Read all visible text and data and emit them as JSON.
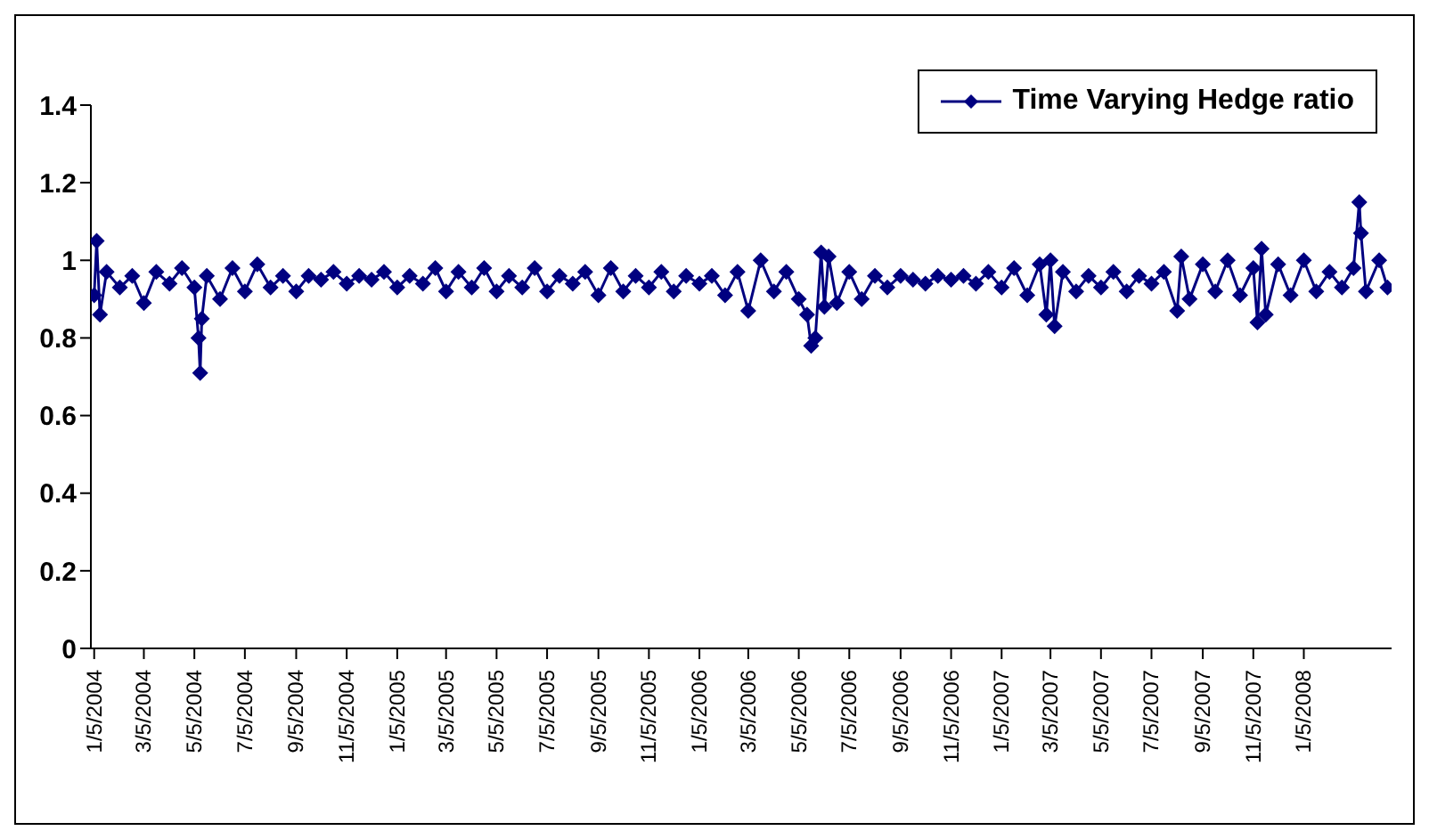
{
  "chart_data": {
    "type": "line",
    "marker": "diamond",
    "legend": "top right",
    "grid": false,
    "xlim": [
      "2004-01-01",
      "2008-04-20"
    ],
    "xticks": [
      {
        "value": "2004-01-05",
        "label": "1/5/2004"
      },
      {
        "value": "2004-03-05",
        "label": "3/5/2004"
      },
      {
        "value": "2004-05-05",
        "label": "5/5/2004"
      },
      {
        "value": "2004-07-05",
        "label": "7/5/2004"
      },
      {
        "value": "2004-09-05",
        "label": "9/5/2004"
      },
      {
        "value": "2004-11-05",
        "label": "11/5/2004"
      },
      {
        "value": "2005-01-05",
        "label": "1/5/2005"
      },
      {
        "value": "2005-03-05",
        "label": "3/5/2005"
      },
      {
        "value": "2005-05-05",
        "label": "5/5/2005"
      },
      {
        "value": "2005-07-05",
        "label": "7/5/2005"
      },
      {
        "value": "2005-09-05",
        "label": "9/5/2005"
      },
      {
        "value": "2005-11-05",
        "label": "11/5/2005"
      },
      {
        "value": "2006-01-05",
        "label": "1/5/2006"
      },
      {
        "value": "2006-03-05",
        "label": "3/5/2006"
      },
      {
        "value": "2006-05-05",
        "label": "5/5/2006"
      },
      {
        "value": "2006-07-05",
        "label": "7/5/2006"
      },
      {
        "value": "2006-09-05",
        "label": "9/5/2006"
      },
      {
        "value": "2006-11-05",
        "label": "11/5/2006"
      },
      {
        "value": "2007-01-05",
        "label": "1/5/2007"
      },
      {
        "value": "2007-03-05",
        "label": "3/5/2007"
      },
      {
        "value": "2007-05-05",
        "label": "5/5/2007"
      },
      {
        "value": "2007-07-05",
        "label": "7/5/2007"
      },
      {
        "value": "2007-09-05",
        "label": "9/5/2007"
      },
      {
        "value": "2007-11-05",
        "label": "11/5/2007"
      },
      {
        "value": "2008-01-05",
        "label": "1/5/2008"
      }
    ],
    "ylim": [
      0,
      1.4
    ],
    "yticks": [
      0,
      0.2,
      0.4,
      0.6,
      0.8,
      1,
      1.2,
      1.4
    ],
    "series": [
      {
        "name": "Time Varying Hedge ratio",
        "color": "#000080",
        "x": [
          "2004-01-05",
          "2004-01-08",
          "2004-01-12",
          "2004-01-20",
          "2004-02-05",
          "2004-02-20",
          "2004-03-05",
          "2004-03-20",
          "2004-04-05",
          "2004-04-20",
          "2004-05-05",
          "2004-05-10",
          "2004-05-12",
          "2004-05-14",
          "2004-05-20",
          "2004-06-05",
          "2004-06-20",
          "2004-07-05",
          "2004-07-20",
          "2004-08-05",
          "2004-08-20",
          "2004-09-05",
          "2004-09-20",
          "2004-10-05",
          "2004-10-20",
          "2004-11-05",
          "2004-11-20",
          "2004-12-05",
          "2004-12-20",
          "2005-01-05",
          "2005-01-20",
          "2005-02-05",
          "2005-02-20",
          "2005-03-05",
          "2005-03-20",
          "2005-04-05",
          "2005-04-20",
          "2005-05-05",
          "2005-05-20",
          "2005-06-05",
          "2005-06-20",
          "2005-07-05",
          "2005-07-20",
          "2005-08-05",
          "2005-08-20",
          "2005-09-05",
          "2005-09-20",
          "2005-10-05",
          "2005-10-20",
          "2005-11-05",
          "2005-11-20",
          "2005-12-05",
          "2005-12-20",
          "2006-01-05",
          "2006-01-20",
          "2006-02-05",
          "2006-02-20",
          "2006-03-05",
          "2006-03-20",
          "2006-04-05",
          "2006-04-20",
          "2006-05-05",
          "2006-05-15",
          "2006-05-20",
          "2006-05-25",
          "2006-06-01",
          "2006-06-05",
          "2006-06-10",
          "2006-06-20",
          "2006-07-05",
          "2006-07-20",
          "2006-08-05",
          "2006-08-20",
          "2006-09-05",
          "2006-09-20",
          "2006-10-05",
          "2006-10-20",
          "2006-11-05",
          "2006-11-20",
          "2006-12-05",
          "2006-12-20",
          "2007-01-05",
          "2007-01-20",
          "2007-02-05",
          "2007-02-20",
          "2007-02-28",
          "2007-03-05",
          "2007-03-10",
          "2007-03-20",
          "2007-04-05",
          "2007-04-20",
          "2007-05-05",
          "2007-05-20",
          "2007-06-05",
          "2007-06-20",
          "2007-07-05",
          "2007-07-20",
          "2007-08-05",
          "2007-08-10",
          "2007-08-20",
          "2007-09-05",
          "2007-09-20",
          "2007-10-05",
          "2007-10-20",
          "2007-11-05",
          "2007-11-10",
          "2007-11-15",
          "2007-11-20",
          "2007-12-05",
          "2007-12-20",
          "2008-01-05",
          "2008-01-20",
          "2008-02-05",
          "2008-02-20",
          "2008-03-05",
          "2008-03-12",
          "2008-03-14",
          "2008-03-20",
          "2008-04-05",
          "2008-04-15"
        ],
        "values": [
          0.91,
          1.05,
          0.86,
          0.97,
          0.93,
          0.96,
          0.89,
          0.97,
          0.94,
          0.98,
          0.93,
          0.8,
          0.71,
          0.85,
          0.96,
          0.9,
          0.98,
          0.92,
          0.99,
          0.93,
          0.96,
          0.92,
          0.96,
          0.95,
          0.97,
          0.94,
          0.96,
          0.95,
          0.97,
          0.93,
          0.96,
          0.94,
          0.98,
          0.92,
          0.97,
          0.93,
          0.98,
          0.92,
          0.96,
          0.93,
          0.98,
          0.92,
          0.96,
          0.94,
          0.97,
          0.91,
          0.98,
          0.92,
          0.96,
          0.93,
          0.97,
          0.92,
          0.96,
          0.94,
          0.96,
          0.91,
          0.97,
          0.87,
          1.0,
          0.92,
          0.97,
          0.9,
          0.86,
          0.78,
          0.8,
          1.02,
          0.88,
          1.01,
          0.89,
          0.97,
          0.9,
          0.96,
          0.93,
          0.96,
          0.95,
          0.94,
          0.96,
          0.95,
          0.96,
          0.94,
          0.97,
          0.93,
          0.98,
          0.91,
          0.99,
          0.86,
          1.0,
          0.83,
          0.97,
          0.92,
          0.96,
          0.93,
          0.97,
          0.92,
          0.96,
          0.94,
          0.97,
          0.87,
          1.01,
          0.9,
          0.99,
          0.92,
          1.0,
          0.91,
          0.98,
          0.84,
          1.03,
          0.86,
          0.99,
          0.91,
          1.0,
          0.92,
          0.97,
          0.93,
          0.98,
          1.15,
          1.07,
          0.92,
          1.0,
          0.93
        ]
      }
    ]
  }
}
